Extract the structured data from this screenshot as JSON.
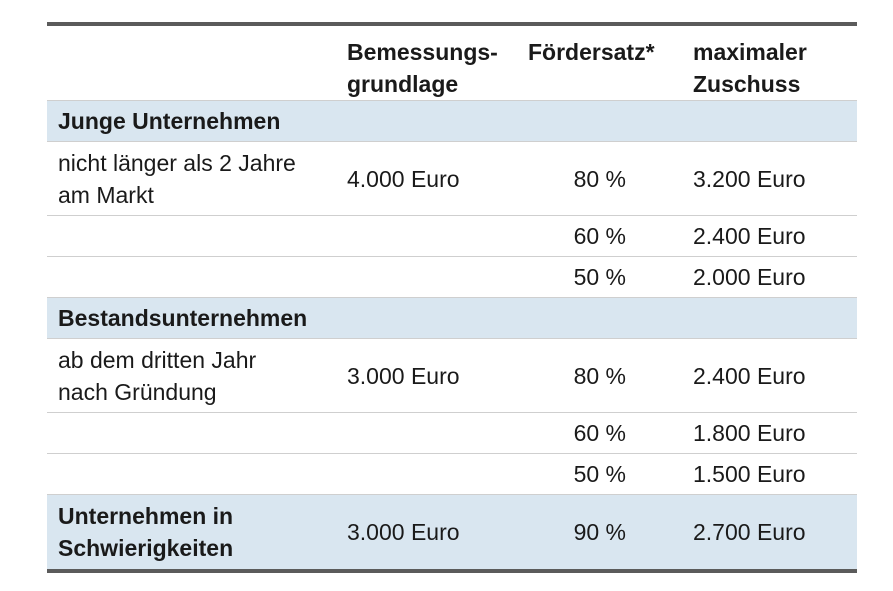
{
  "table": {
    "headers": {
      "col1": "",
      "col2": "Bemessungs-\ngrundlage",
      "col3": "Fördersatz*",
      "col4": "maximaler\nZuschuss"
    },
    "sections": [
      {
        "title": "Junge Unternehmen",
        "rows": [
          {
            "label": "nicht länger als 2 Jahre\nam Markt",
            "basis": "4.000 Euro",
            "rate": "80 %",
            "max": "3.200 Euro"
          },
          {
            "label": "",
            "basis": "",
            "rate": "60 %",
            "max": "2.400 Euro"
          },
          {
            "label": "",
            "basis": "",
            "rate": "50 %",
            "max": "2.000 Euro"
          }
        ]
      },
      {
        "title": "Bestandsunternehmen",
        "rows": [
          {
            "label": "ab dem dritten Jahr\nnach Gründung",
            "basis": "3.000 Euro",
            "rate": "80 %",
            "max": "2.400 Euro"
          },
          {
            "label": "",
            "basis": "",
            "rate": "60 %",
            "max": "1.800 Euro"
          },
          {
            "label": "",
            "basis": "",
            "rate": "50 %",
            "max": "1.500 Euro"
          }
        ]
      }
    ],
    "final_row": {
      "label": "Unternehmen in\nSchwierigkeiten",
      "basis": "3.000 Euro",
      "rate": "90 %",
      "max": "2.700 Euro"
    },
    "colors": {
      "section_bg": "#d9e6f0",
      "rule": "#5b5b5b",
      "divider": "#cfcfcf"
    }
  }
}
